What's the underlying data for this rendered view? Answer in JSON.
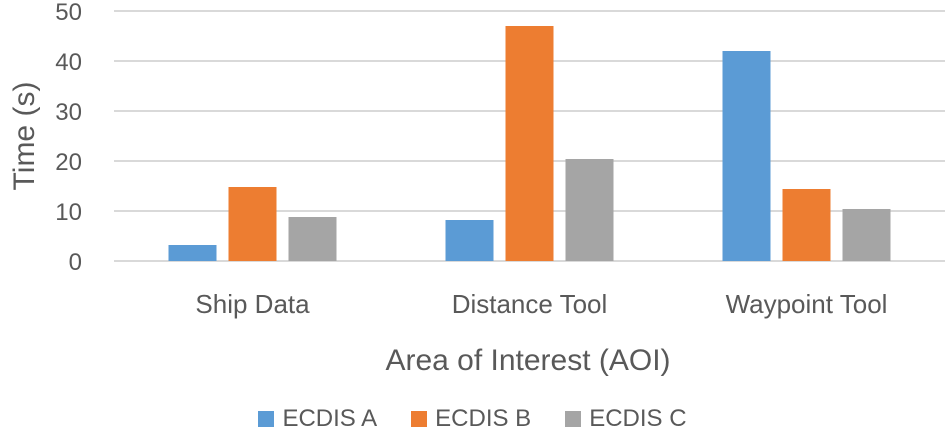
{
  "chart_data": {
    "type": "bar",
    "title": "",
    "xlabel": "Area of Interest (AOI)",
    "ylabel": "Time (s)",
    "ylim": [
      0,
      50
    ],
    "yticks": [
      0,
      10,
      20,
      30,
      40,
      50
    ],
    "grid": true,
    "legend_position": "bottom",
    "categories": [
      "Ship Data",
      "Distance Tool",
      "Waypoint Tool"
    ],
    "series": [
      {
        "name": "ECDIS A",
        "color": "#5B9BD5",
        "values": [
          3.2,
          8.2,
          42.0
        ]
      },
      {
        "name": "ECDIS B",
        "color": "#ED7D31",
        "values": [
          14.8,
          47.0,
          14.4
        ]
      },
      {
        "name": "ECDIS C",
        "color": "#A5A5A5",
        "values": [
          8.8,
          20.4,
          10.4
        ]
      }
    ]
  }
}
